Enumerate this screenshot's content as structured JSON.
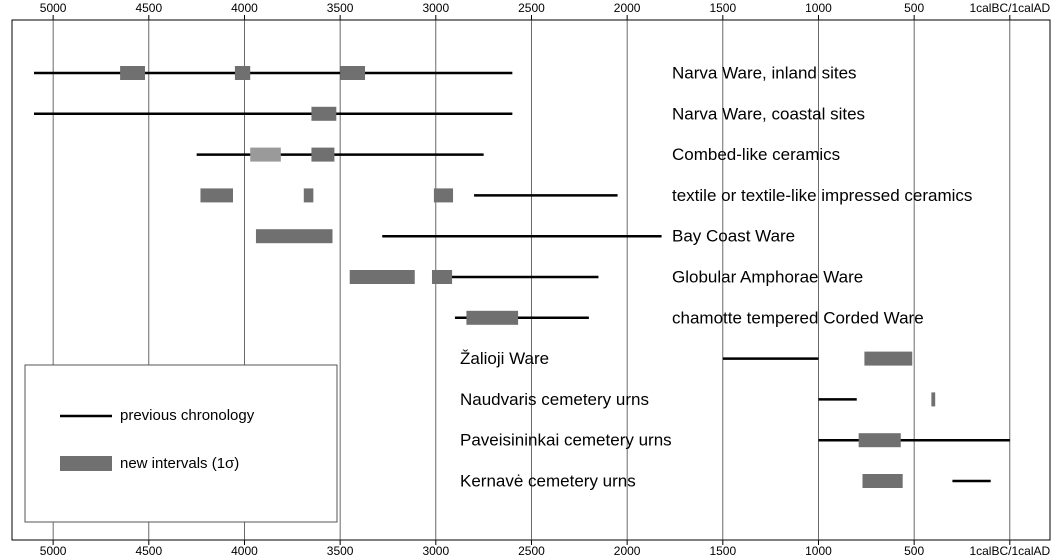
{
  "chart_data": {
    "type": "range",
    "xlim": [
      5215,
      -210
    ],
    "xticks": [
      5000,
      4500,
      4000,
      3500,
      3000,
      2500,
      2000,
      1500,
      1000,
      500,
      {
        "value": 0,
        "label": "1calBC/1calAD"
      }
    ],
    "grid": true,
    "line_color": "#000000",
    "bar_color": "#707070",
    "legend": {
      "line": "previous chronology",
      "bar": "new intervals (1σ)"
    },
    "rows": [
      {
        "name": "Narva Ware, inland sites",
        "range": [
          5100,
          2600
        ],
        "bars": [
          [
            4650,
            4520
          ],
          [
            4050,
            3970
          ],
          [
            3500,
            3370
          ]
        ]
      },
      {
        "name": "Narva Ware, coastal sites",
        "range": [
          5100,
          2600
        ],
        "bars": [
          [
            3650,
            3520
          ]
        ]
      },
      {
        "name": "Combed-like ceramics",
        "range": [
          4250,
          2750
        ],
        "bars": [
          [
            3970,
            3810
          ],
          [
            3650,
            3530
          ]
        ],
        "bar_colors": [
          "#9a9a9a",
          "#707070"
        ]
      },
      {
        "name": "textile or textile-like impressed ceramics",
        "range": [
          2800,
          2050
        ],
        "bars": [
          [
            4230,
            4060
          ],
          [
            3690,
            3640
          ],
          [
            3010,
            2910
          ]
        ]
      },
      {
        "name": "Bay Coast Ware",
        "range": [
          3280,
          1820
        ],
        "bars": [
          [
            3940,
            3540
          ]
        ]
      },
      {
        "name": "Globular Amphorae Ware",
        "range": [
          3020,
          2150
        ],
        "bars": [
          [
            3450,
            3110
          ],
          [
            3020,
            2915
          ]
        ]
      },
      {
        "name": "chamotte tempered Corded Ware",
        "range": [
          2900,
          2200
        ],
        "bars": [
          [
            2840,
            2570
          ]
        ]
      },
      {
        "name": "Žalioji Ware",
        "range": [
          1500,
          1000
        ],
        "bars": [
          [
            760,
            510
          ]
        ]
      },
      {
        "name": "Naudvaris cemetery urns",
        "range": [
          1000,
          800
        ],
        "bars": [
          [
            410,
            390
          ]
        ]
      },
      {
        "name": "Paveisininkai cemetery urns",
        "range": [
          1000,
          0
        ],
        "bars": [
          [
            790,
            570
          ]
        ]
      },
      {
        "name": "Kernavė cemetery urns",
        "range": [
          300,
          100
        ],
        "bars": [
          [
            770,
            560
          ]
        ]
      }
    ]
  }
}
